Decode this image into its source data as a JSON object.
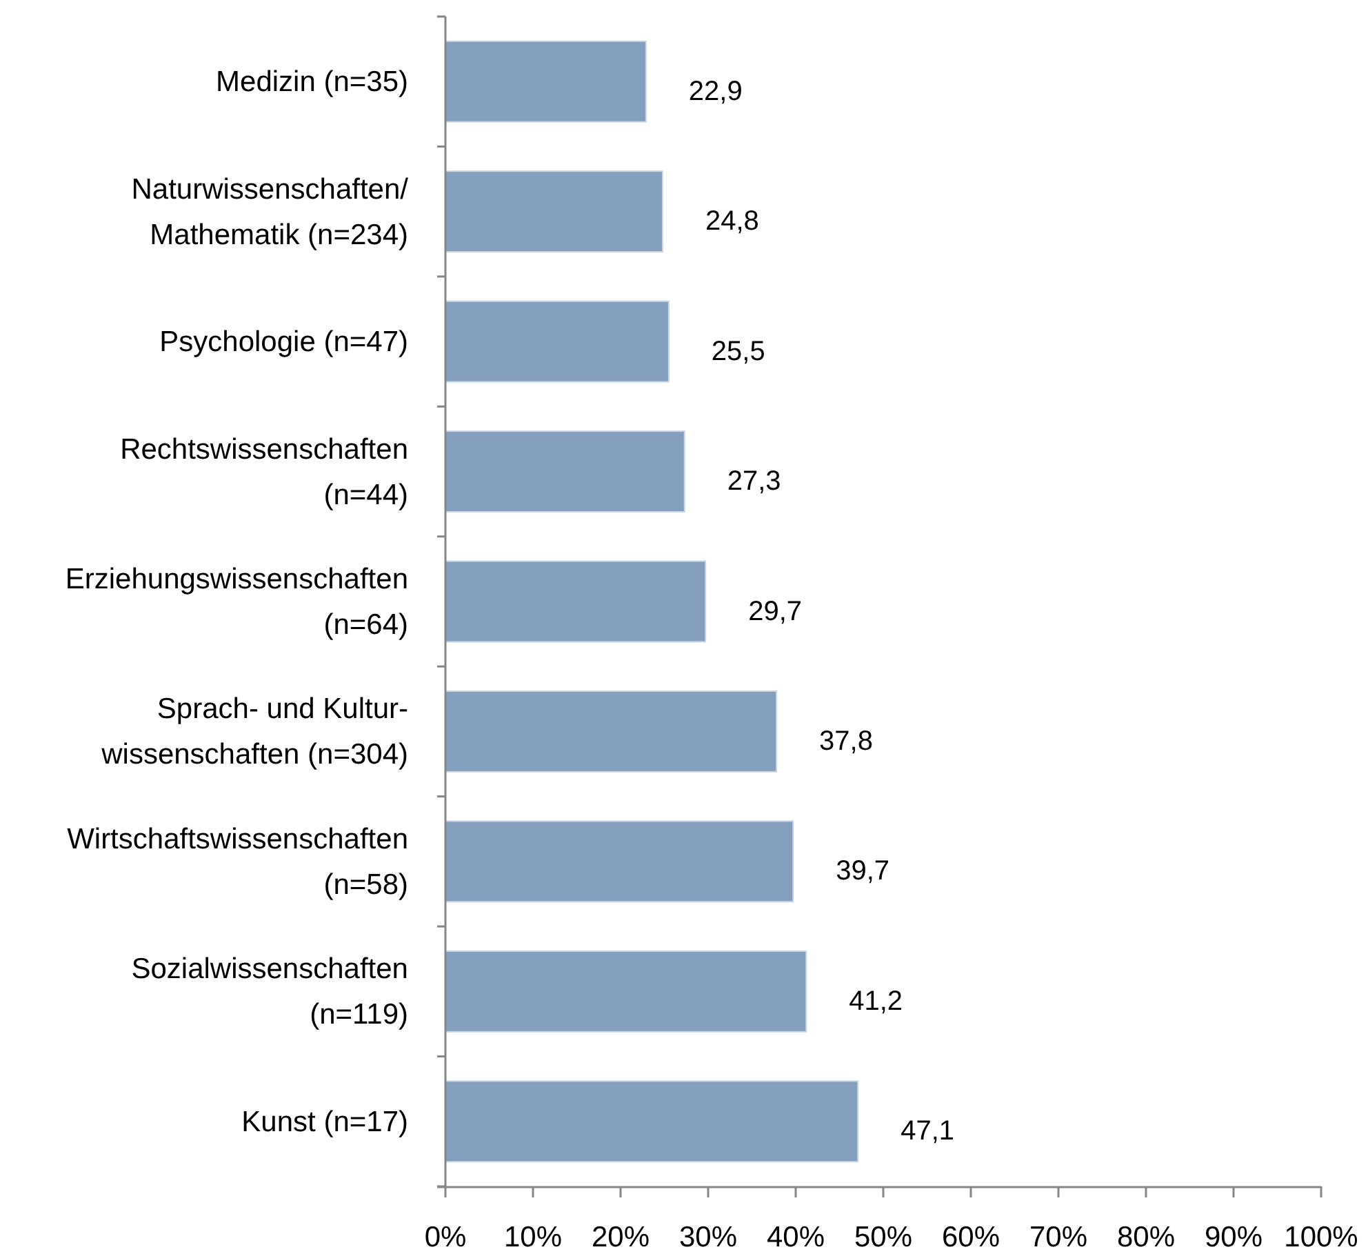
{
  "chart_data": {
    "type": "bar",
    "orientation": "horizontal",
    "categories": [
      "Medizin (n=35)",
      "Naturwissenschaften/\nMathematik (n=234)",
      "Psychologie (n=47)",
      "Rechtswissenschaften\n(n=44)",
      "Erziehungswissenschaften\n(n=64)",
      "Sprach- und Kultur-\nwissenschaften (n=304)",
      "Wirtschaftswissenschaften\n(n=58)",
      "Sozialwissenschaften\n(n=119)",
      "Kunst (n=17)"
    ],
    "values": [
      22.9,
      24.8,
      25.5,
      27.3,
      29.7,
      37.8,
      39.7,
      41.2,
      47.1
    ],
    "value_labels": [
      "22,9",
      "24,8",
      "25,5",
      "27,3",
      "29,7",
      "37,8",
      "39,7",
      "41,2",
      "47,1"
    ],
    "color": "#849fbd",
    "xlim": [
      0,
      100
    ],
    "xticks": [
      {
        "value": 0,
        "label": "0%"
      },
      {
        "value": 10,
        "label": "10%"
      },
      {
        "value": 20,
        "label": "20%"
      },
      {
        "value": 30,
        "label": "30%"
      },
      {
        "value": 40,
        "label": "40%"
      },
      {
        "value": 50,
        "label": "50%"
      },
      {
        "value": 60,
        "label": "60%"
      },
      {
        "value": 70,
        "label": "70%"
      },
      {
        "value": 80,
        "label": "80%"
      },
      {
        "value": 90,
        "label": "90%"
      },
      {
        "value": 100,
        "label": "100%"
      }
    ],
    "grid": false
  }
}
